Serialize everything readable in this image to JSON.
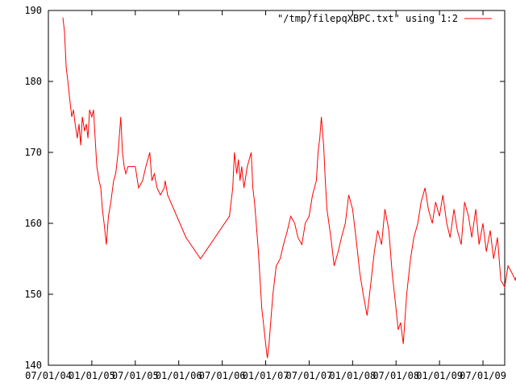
{
  "chart_data": {
    "type": "line",
    "title": "",
    "xlabel": "",
    "ylabel": "",
    "ylim": [
      140,
      190
    ],
    "y_ticks": [
      140,
      150,
      160,
      170,
      180,
      190
    ],
    "x_tick_labels": [
      "07/01/04",
      "01/01/05",
      "07/01/05",
      "01/01/06",
      "07/01/06",
      "01/01/07",
      "07/01/07",
      "01/01/08",
      "07/01/08",
      "01/01/09",
      "07/01/09"
    ],
    "x_range_months": [
      0,
      63
    ],
    "grid": false,
    "legend_position": "top-right",
    "line_color": "#ff0000",
    "series": [
      {
        "name": "\"/tmp/filepqXBPC.txt\" using 1:2",
        "points": [
          [
            "2004-09-01",
            189
          ],
          [
            "2004-09-08",
            187
          ],
          [
            "2004-09-15",
            182
          ],
          [
            "2004-09-22",
            180
          ],
          [
            "2004-10-01",
            177
          ],
          [
            "2004-10-08",
            175
          ],
          [
            "2004-10-15",
            176
          ],
          [
            "2004-10-22",
            174
          ],
          [
            "2004-11-01",
            172
          ],
          [
            "2004-11-08",
            174
          ],
          [
            "2004-11-15",
            171
          ],
          [
            "2004-11-22",
            175
          ],
          [
            "2004-12-01",
            173
          ],
          [
            "2004-12-08",
            174
          ],
          [
            "2004-12-15",
            172
          ],
          [
            "2004-12-22",
            176
          ],
          [
            "2005-01-01",
            175
          ],
          [
            "2005-01-08",
            176
          ],
          [
            "2005-01-15",
            172
          ],
          [
            "2005-01-22",
            168
          ],
          [
            "2005-02-01",
            166
          ],
          [
            "2005-02-08",
            165
          ],
          [
            "2005-02-15",
            162
          ],
          [
            "2005-02-22",
            160
          ],
          [
            "2005-03-01",
            157
          ],
          [
            "2005-03-10",
            161
          ],
          [
            "2005-03-20",
            163
          ],
          [
            "2005-04-01",
            166
          ],
          [
            "2005-04-10",
            167
          ],
          [
            "2005-04-20",
            170
          ],
          [
            "2005-05-01",
            175
          ],
          [
            "2005-05-08",
            170
          ],
          [
            "2005-05-15",
            168
          ],
          [
            "2005-05-22",
            167
          ],
          [
            "2005-06-01",
            168
          ],
          [
            "2005-06-15",
            168
          ],
          [
            "2005-07-01",
            168
          ],
          [
            "2005-07-15",
            165
          ],
          [
            "2005-08-01",
            166
          ],
          [
            "2005-08-15",
            168
          ],
          [
            "2005-09-01",
            170
          ],
          [
            "2005-09-10",
            166
          ],
          [
            "2005-09-20",
            167
          ],
          [
            "2005-10-01",
            165
          ],
          [
            "2005-10-15",
            164
          ],
          [
            "2005-11-01",
            165
          ],
          [
            "2005-11-05",
            166
          ],
          [
            "2005-11-15",
            164
          ],
          [
            "2006-02-01",
            158
          ],
          [
            "2006-04-01",
            155
          ],
          [
            "2006-06-01",
            158
          ],
          [
            "2006-08-01",
            161
          ],
          [
            "2006-08-15",
            165
          ],
          [
            "2006-08-22",
            170
          ],
          [
            "2006-09-01",
            167
          ],
          [
            "2006-09-08",
            169
          ],
          [
            "2006-09-15",
            166
          ],
          [
            "2006-09-22",
            168
          ],
          [
            "2006-10-01",
            165
          ],
          [
            "2006-10-15",
            168
          ],
          [
            "2006-11-01",
            170
          ],
          [
            "2006-11-08",
            165
          ],
          [
            "2006-11-15",
            163
          ],
          [
            "2006-11-22",
            160
          ],
          [
            "2006-12-01",
            156
          ],
          [
            "2006-12-08",
            152
          ],
          [
            "2006-12-15",
            148
          ],
          [
            "2006-12-22",
            146
          ],
          [
            "2007-01-01",
            143
          ],
          [
            "2007-01-08",
            141
          ],
          [
            "2007-01-15",
            143
          ],
          [
            "2007-01-22",
            146
          ],
          [
            "2007-02-01",
            150
          ],
          [
            "2007-02-15",
            154
          ],
          [
            "2007-03-01",
            155
          ],
          [
            "2007-03-15",
            157
          ],
          [
            "2007-04-01",
            159
          ],
          [
            "2007-04-15",
            161
          ],
          [
            "2007-05-01",
            160
          ],
          [
            "2007-05-15",
            158
          ],
          [
            "2007-06-01",
            157
          ],
          [
            "2007-06-15",
            160
          ],
          [
            "2007-07-01",
            161
          ],
          [
            "2007-07-15",
            164
          ],
          [
            "2007-08-01",
            166
          ],
          [
            "2007-08-08",
            170
          ],
          [
            "2007-08-15",
            172
          ],
          [
            "2007-08-22",
            175
          ],
          [
            "2007-09-01",
            171
          ],
          [
            "2007-09-08",
            166
          ],
          [
            "2007-09-15",
            162
          ],
          [
            "2007-10-01",
            158
          ],
          [
            "2007-10-15",
            154
          ],
          [
            "2007-11-01",
            156
          ],
          [
            "2007-11-15",
            158
          ],
          [
            "2007-12-01",
            160
          ],
          [
            "2007-12-15",
            164
          ],
          [
            "2008-01-01",
            162
          ],
          [
            "2008-01-15",
            158
          ],
          [
            "2008-02-01",
            153
          ],
          [
            "2008-02-15",
            150
          ],
          [
            "2008-03-01",
            147
          ],
          [
            "2008-03-15",
            151
          ],
          [
            "2008-04-01",
            156
          ],
          [
            "2008-04-15",
            159
          ],
          [
            "2008-05-01",
            157
          ],
          [
            "2008-05-15",
            162
          ],
          [
            "2008-06-01",
            159
          ],
          [
            "2008-06-15",
            153
          ],
          [
            "2008-07-01",
            148
          ],
          [
            "2008-07-10",
            145
          ],
          [
            "2008-07-20",
            146
          ],
          [
            "2008-08-01",
            143
          ],
          [
            "2008-08-15",
            150
          ],
          [
            "2008-09-01",
            155
          ],
          [
            "2008-09-15",
            158
          ],
          [
            "2008-10-01",
            160
          ],
          [
            "2008-10-15",
            163
          ],
          [
            "2008-11-01",
            165
          ],
          [
            "2008-11-15",
            162
          ],
          [
            "2008-12-01",
            160
          ],
          [
            "2008-12-15",
            163
          ],
          [
            "2009-01-01",
            161
          ],
          [
            "2009-01-15",
            164
          ],
          [
            "2009-02-01",
            160
          ],
          [
            "2009-02-15",
            158
          ],
          [
            "2009-03-01",
            162
          ],
          [
            "2009-03-15",
            159
          ],
          [
            "2009-04-01",
            157
          ],
          [
            "2009-04-15",
            163
          ],
          [
            "2009-05-01",
            161
          ],
          [
            "2009-05-15",
            158
          ],
          [
            "2009-06-01",
            162
          ],
          [
            "2009-06-15",
            157
          ],
          [
            "2009-07-01",
            160
          ],
          [
            "2009-07-15",
            156
          ],
          [
            "2009-08-01",
            159
          ],
          [
            "2009-08-15",
            155
          ],
          [
            "2009-09-01",
            158
          ],
          [
            "2009-09-15",
            152
          ],
          [
            "2009-10-01",
            151
          ],
          [
            "2009-10-15",
            154
          ],
          [
            "2009-11-01",
            153
          ],
          [
            "2009-11-15",
            152
          ],
          [
            "2009-12-01",
            154
          ],
          [
            "2009-12-15",
            155
          ],
          [
            "2010-01-01",
            153
          ],
          [
            "2010-01-15",
            157
          ],
          [
            "2010-02-01",
            155
          ],
          [
            "2010-02-15",
            157
          ],
          [
            "2010-03-01",
            154
          ],
          [
            "2010-03-15",
            156
          ]
        ]
      }
    ]
  }
}
